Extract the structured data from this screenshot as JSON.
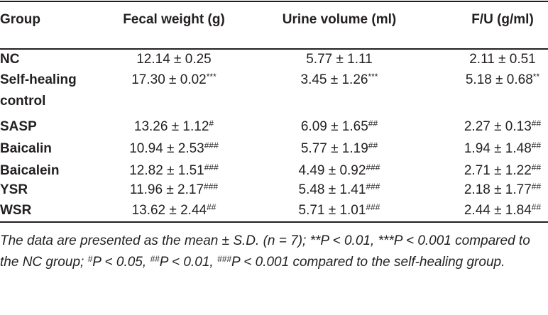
{
  "table": {
    "header": [
      "Group",
      "Fecal weight (g)",
      "Urine volume (ml)",
      "F/U (g/ml)"
    ],
    "rows": [
      [
        {
          "text": "NC"
        },
        {
          "text": "12.14 ± 0.25"
        },
        {
          "text": "5.77 ± 1.11"
        },
        {
          "text": "2.11 ± 0.51"
        }
      ],
      [
        {
          "text": "Self-healing control"
        },
        {
          "text": "17.30 ± 0.02",
          "sup": "***"
        },
        {
          "text": "3.45 ± 1.26",
          "sup": "***"
        },
        {
          "text": "5.18 ± 0.68",
          "sup": "**"
        }
      ],
      [
        {
          "text": "SASP"
        },
        {
          "text": "13.26 ± 1.12",
          "sup": "#"
        },
        {
          "text": "6.09 ± 1.65",
          "sup": "##"
        },
        {
          "text": "2.27 ± 0.13",
          "sup": "##"
        }
      ],
      [
        {
          "text": "Baicalin"
        },
        {
          "text": "10.94 ± 2.53",
          "sup": "###"
        },
        {
          "text": "5.77 ± 1.19",
          "sup": "##"
        },
        {
          "text": "1.94 ± 1.48",
          "sup": "##"
        }
      ],
      [
        {
          "text": "Baicalein"
        },
        {
          "text": "12.82 ± 1.51",
          "sup": "###"
        },
        {
          "text": "4.49 ± 0.92",
          "sup": "###"
        },
        {
          "text": "2.71 ± 1.22",
          "sup": "##"
        }
      ],
      [
        {
          "text": "YSR"
        },
        {
          "text": "11.96 ± 2.17",
          "sup": "###"
        },
        {
          "text": "5.48 ± 1.41",
          "sup": "###"
        },
        {
          "text": "2.18 ± 1.77",
          "sup": "##"
        }
      ],
      [
        {
          "text": "WSR"
        },
        {
          "text": "13.62 ± 2.44",
          "sup": "##"
        },
        {
          "text": "5.71 ± 1.01",
          "sup": "###"
        },
        {
          "text": "2.44 ± 1.84",
          "sup": "##"
        }
      ]
    ],
    "footnote": [
      {
        "text": "The data are presented as the mean ± S.D. (n = 7); **P < 0.01, ***P < 0.001 compared to the NC group; "
      },
      {
        "sup": "#"
      },
      {
        "text": "P < 0.05, "
      },
      {
        "sup": "##"
      },
      {
        "text": "P < 0.01, "
      },
      {
        "sup": "###"
      },
      {
        "text": "P < 0.001 compared to the self-healing group."
      }
    ]
  }
}
